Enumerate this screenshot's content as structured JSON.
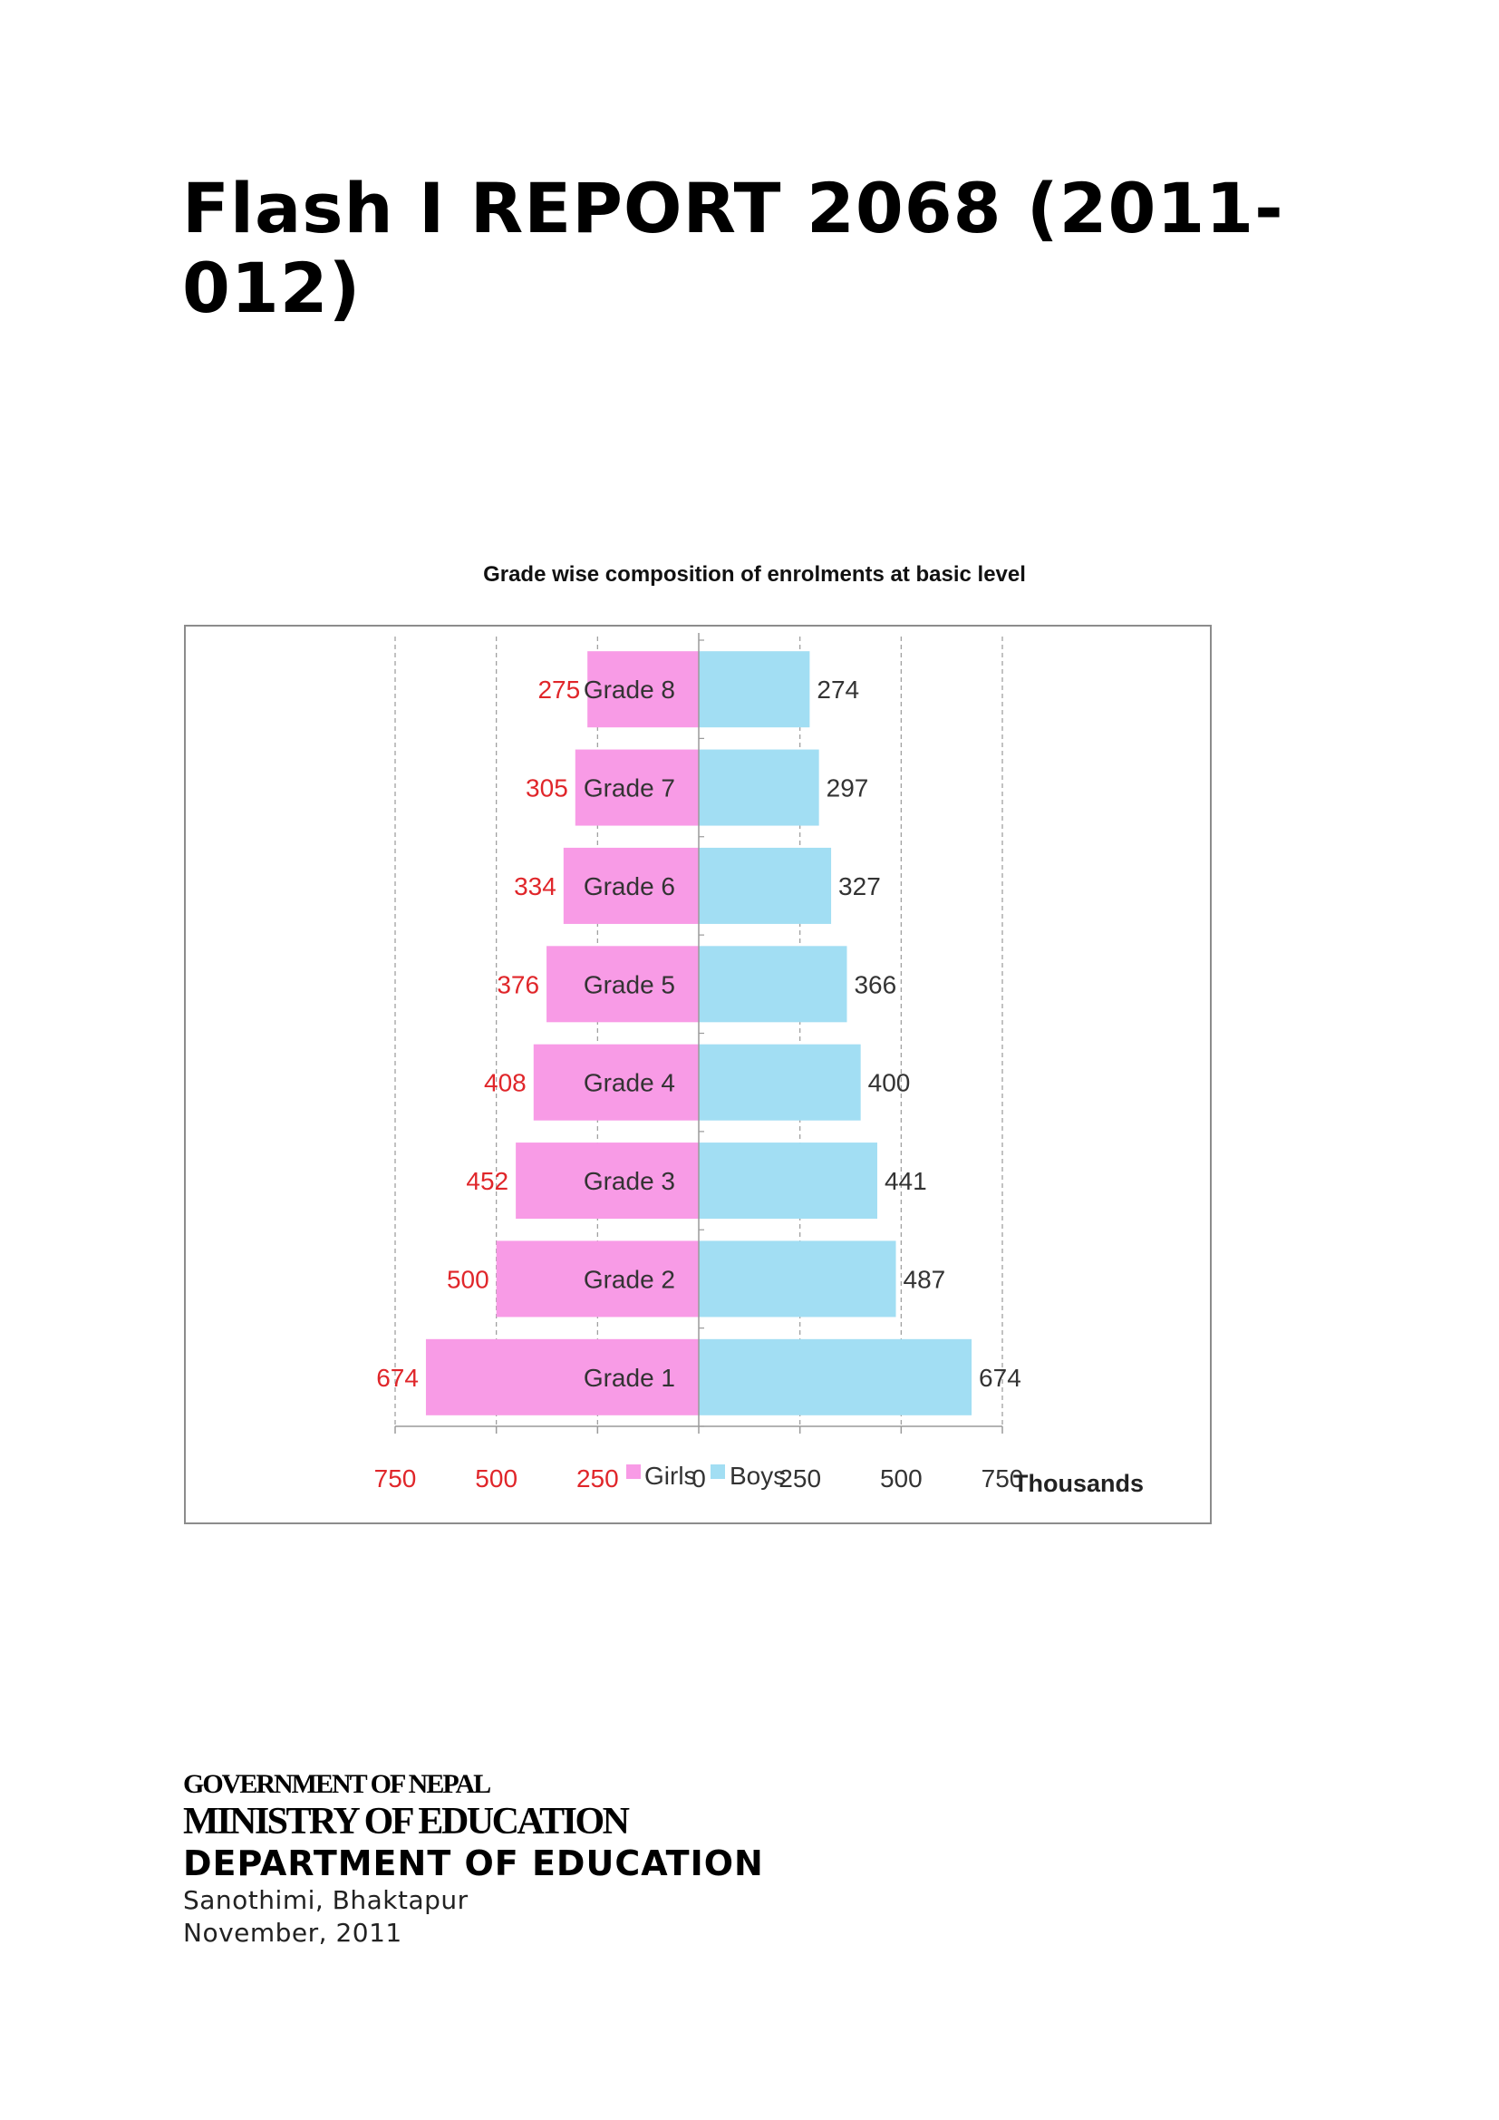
{
  "report": {
    "title": "Flash I REPORT 2068 (2011-012)"
  },
  "chart_data": {
    "type": "bar",
    "orientation": "horizontal",
    "title": "Grade wise composition of enrolments at basic level",
    "categories": [
      "Grade 8",
      "Grade 7",
      "Grade 6",
      "Grade 5",
      "Grade 4",
      "Grade 3",
      "Grade 2",
      "Grade 1"
    ],
    "series": [
      {
        "name": "Girls",
        "color": "#f89be6",
        "label_color": "#e0262a",
        "values": [
          275,
          305,
          334,
          376,
          408,
          452,
          500,
          674
        ]
      },
      {
        "name": "Boys",
        "color": "#a2def3",
        "label_color": "#333333",
        "values": [
          274,
          297,
          327,
          366,
          400,
          441,
          487,
          674
        ]
      }
    ],
    "xlim": [
      -750,
      750
    ],
    "x_ticks": [
      {
        "value": -750,
        "label": "750"
      },
      {
        "value": -500,
        "label": "500"
      },
      {
        "value": -250,
        "label": "250"
      },
      {
        "value": 0,
        "label": "0"
      },
      {
        "value": 250,
        "label": "250"
      },
      {
        "value": 500,
        "label": "500"
      },
      {
        "value": 750,
        "label": "750"
      }
    ],
    "x_unit": "Thousands",
    "grid": true,
    "legend_position": "bottom-center"
  },
  "footer": {
    "government": "GOVERNMENT OF NEPAL",
    "ministry": "MINISTRY OF EDUCATION",
    "department": "DEPARTMENT OF EDUCATION",
    "location": "Sanothimi, Bhaktapur",
    "date": "November, 2011"
  }
}
